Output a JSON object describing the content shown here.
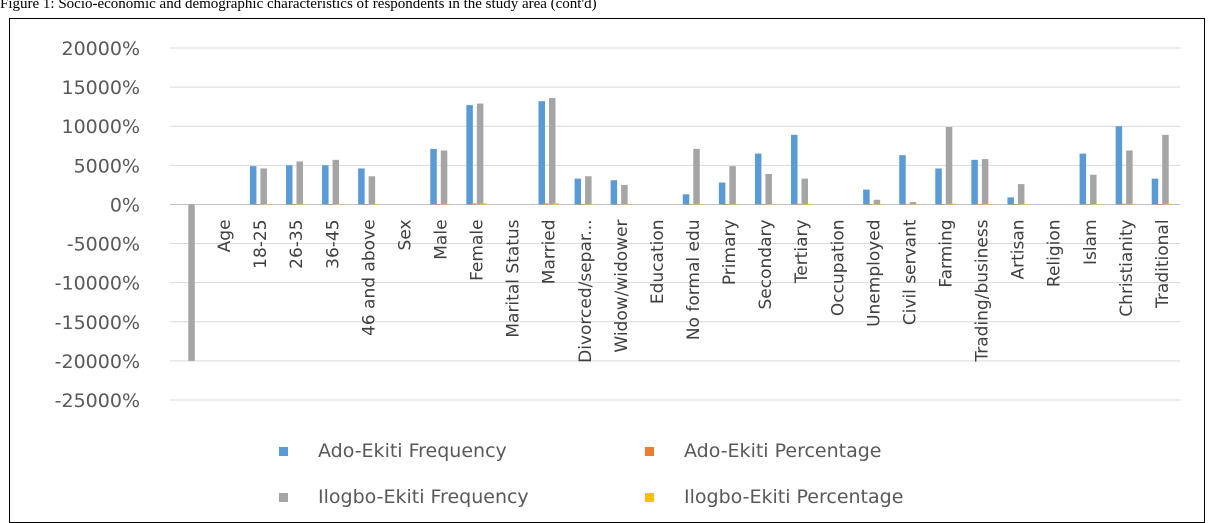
{
  "caption": "Figure 1: Socio-economic and demographic characteristics of respondents in the study area (cont'd)",
  "colors": {
    "ado_frequency": "#5b9bd5",
    "ado_percentage": "#ed7d31",
    "ilogbo_frequency": "#a5a5a5",
    "ilogbo_percentage": "#ffc000",
    "grid": "#d9d9d9",
    "text": "#595959"
  },
  "legend": {
    "position": "bottom",
    "items": [
      {
        "label": "Ado-Ekiti Frequency",
        "color": "#5b9bd5"
      },
      {
        "label": "Ado-Ekiti Percentage",
        "color": "#ed7d31"
      },
      {
        "label": "Ilogbo-Ekiti Frequency",
        "color": "#a5a5a5"
      },
      {
        "label": "Ilogbo-Ekiti Percentage",
        "color": "#ffc000"
      }
    ]
  },
  "chart_data": {
    "type": "bar",
    "title": "",
    "xlabel": "",
    "ylabel": "",
    "ylim": [
      -25000,
      20000
    ],
    "y_ticks": [
      20000,
      15000,
      10000,
      5000,
      0,
      -5000,
      -10000,
      -15000,
      -20000,
      -25000
    ],
    "y_tick_labels": [
      "20000%",
      "15000%",
      "10000%",
      "5000%",
      "0%",
      "-5000%",
      "-10000%",
      "-15000%",
      "-20000%",
      "-25000%"
    ],
    "grid": true,
    "categories": [
      "",
      "Age",
      "18-25",
      "26-35",
      "36-45",
      "46 and above",
      "Sex",
      "Male",
      "Female",
      "Marital Status",
      "Married",
      "Divorced/separ...",
      "Widow/widower",
      "Education",
      "No formal edu",
      "Primary",
      "Secondary",
      "Tertiary",
      "Occupation",
      "Unemployed",
      "Civil servant",
      "Farming",
      "Trading/business",
      "Artisan",
      "Religion",
      "Islam",
      "Christianity",
      "Traditional"
    ],
    "series": [
      {
        "name": "Ado-Ekiti Frequency",
        "color": "#5b9bd5",
        "values": [
          0,
          0,
          4900,
          5000,
          5000,
          4600,
          0,
          7100,
          12700,
          0,
          13200,
          3300,
          3100,
          0,
          1300,
          2800,
          6500,
          8900,
          0,
          1900,
          6300,
          4600,
          5700,
          900,
          0,
          6500,
          10000,
          3300
        ]
      },
      {
        "name": "Ado-Ekiti Percentage",
        "color": "#ed7d31",
        "values": [
          0,
          0,
          49,
          50,
          50,
          46,
          0,
          71,
          127,
          0,
          132,
          33,
          31,
          0,
          13,
          28,
          65,
          89,
          0,
          19,
          63,
          46,
          57,
          9,
          0,
          65,
          100,
          33
        ]
      },
      {
        "name": "Ilogbo-Ekiti Frequency",
        "color": "#a5a5a5",
        "values": [
          -20000,
          0,
          4600,
          5500,
          5700,
          3600,
          0,
          6900,
          12900,
          0,
          13600,
          3600,
          2500,
          0,
          7100,
          4900,
          3900,
          3300,
          0,
          600,
          300,
          9900,
          5800,
          2600,
          0,
          3800,
          6900,
          8900
        ]
      },
      {
        "name": "Ilogbo-Ekiti Percentage",
        "color": "#ffc000",
        "values": [
          0,
          0,
          46,
          55,
          57,
          36,
          0,
          69,
          129,
          0,
          136,
          36,
          25,
          0,
          71,
          49,
          39,
          33,
          0,
          6,
          3,
          99,
          58,
          26,
          0,
          38,
          69,
          89
        ]
      }
    ]
  }
}
